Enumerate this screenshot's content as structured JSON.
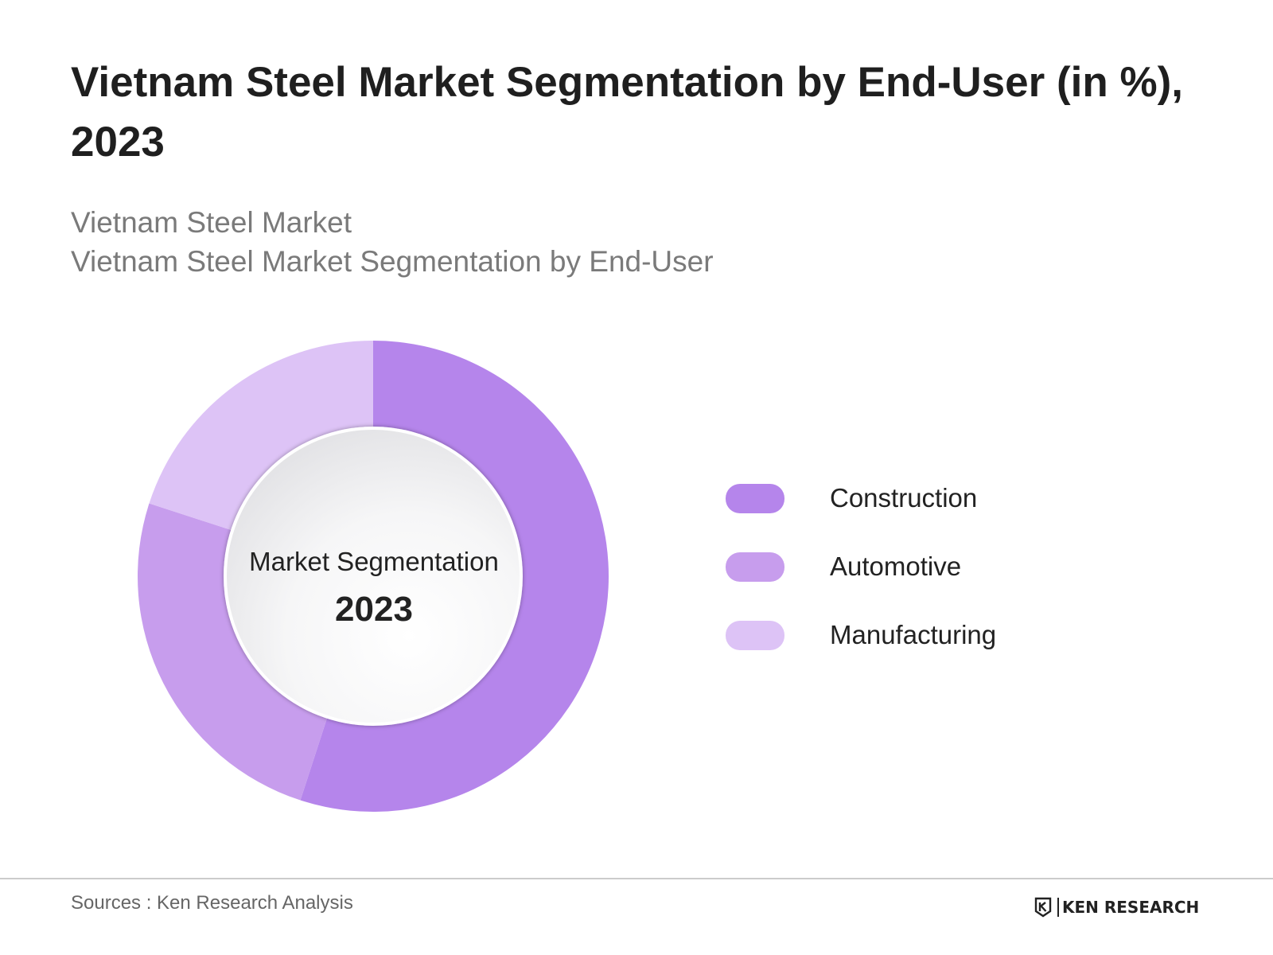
{
  "title": "Vietnam Steel Market Segmentation by End-User (in %), 2023",
  "subtitle_lines": [
    "Vietnam Steel Market",
    "Vietnam Steel Market Segmentation by End-User"
  ],
  "center_label": {
    "line1": "Market Segmentation",
    "line2": "2023"
  },
  "colors": {
    "construction": "#b585eb",
    "automotive": "#c79ded",
    "manufacturing": "#ddc3f6"
  },
  "chart_data": {
    "type": "pie",
    "donut": true,
    "categories": [
      "Construction",
      "Automotive",
      "Manufacturing"
    ],
    "values": [
      55,
      25,
      20
    ],
    "unit": "%",
    "title": "Vietnam Steel Market Segmentation by End-User (in %), 2023",
    "legend_position": "right"
  },
  "footer": {
    "source": "Sources : Ken Research Analysis",
    "logo_text": "KEN RESEARCH"
  }
}
